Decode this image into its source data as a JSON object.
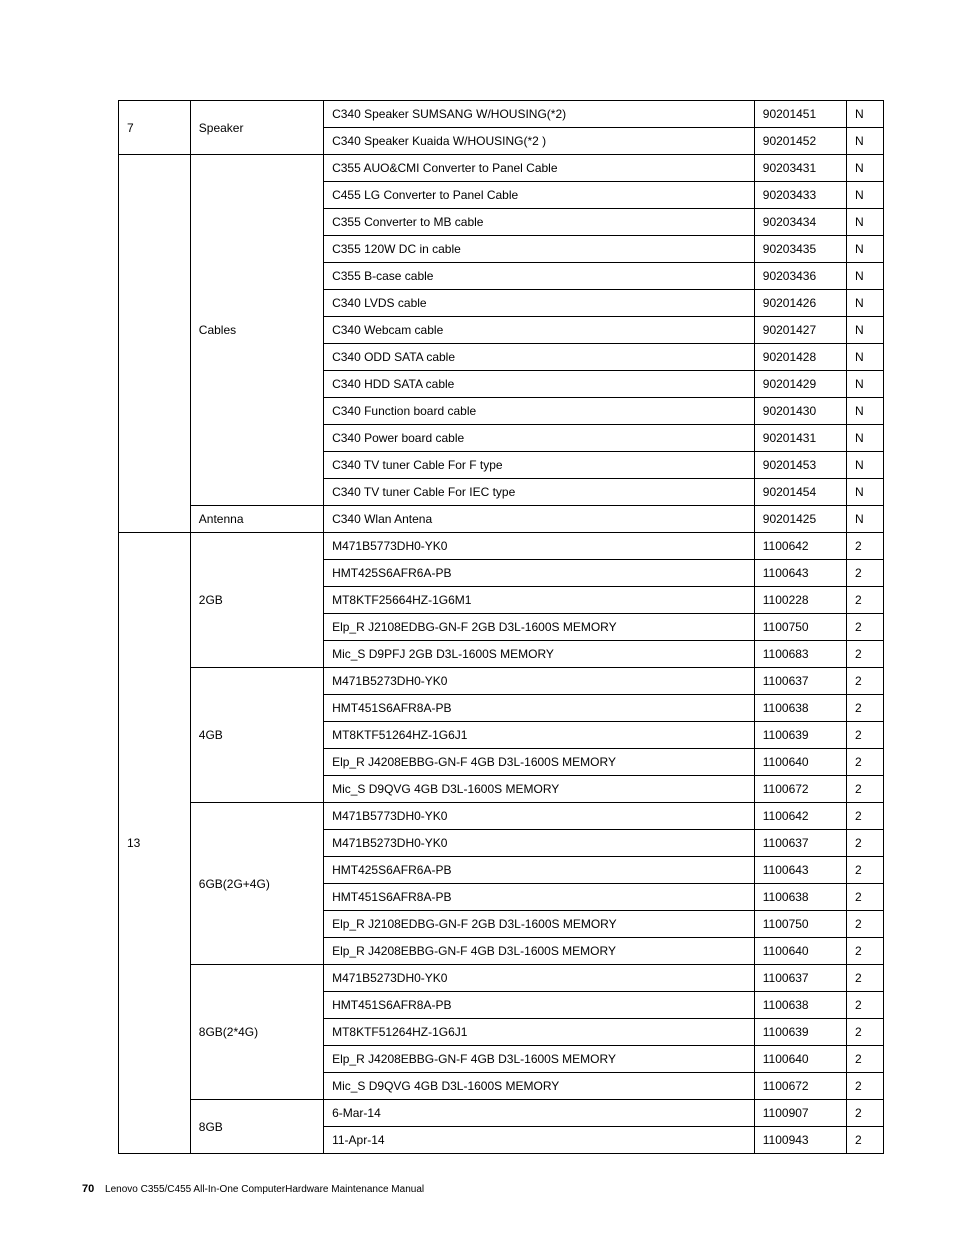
{
  "table": {
    "border_color": "#000000",
    "background": "#ffffff",
    "font_size": 12,
    "columns": [
      "no",
      "category",
      "description",
      "partno",
      "cru"
    ],
    "rows": [
      [
        "7",
        "Speaker",
        "C340 Speaker SUMSANG W/HOUSING(*2)",
        "90201451",
        "N"
      ],
      [
        "",
        "",
        "C340 Speaker Kuaida W/HOUSING(*2 )",
        "90201452",
        "N"
      ],
      [
        "",
        "Cables",
        "C355 AUO&CMI Converter to Panel Cable",
        "90203431",
        "N"
      ],
      [
        "",
        "",
        "C455 LG Converter to Panel Cable",
        "90203433",
        "N"
      ],
      [
        "",
        "",
        "C355 Converter to MB cable",
        "90203434",
        "N"
      ],
      [
        "",
        "",
        "C355 120W DC in cable",
        "90203435",
        "N"
      ],
      [
        "",
        "",
        "C355 B-case cable",
        "90203436",
        "N"
      ],
      [
        "",
        "",
        "C340 LVDS cable",
        "90201426",
        "N"
      ],
      [
        "",
        "",
        "C340 Webcam cable",
        "90201427",
        "N"
      ],
      [
        "",
        "",
        "C340 ODD SATA cable",
        "90201428",
        "N"
      ],
      [
        "",
        "",
        "C340 HDD SATA cable",
        "90201429",
        "N"
      ],
      [
        "",
        "",
        "C340 Function board cable",
        "90201430",
        "N"
      ],
      [
        "",
        "",
        "C340 Power board cable",
        "90201431",
        "N"
      ],
      [
        "",
        "",
        "C340 TV tuner Cable For F type",
        "90201453",
        "N"
      ],
      [
        "",
        "",
        "C340 TV tuner Cable For IEC type",
        "90201454",
        "N"
      ],
      [
        "",
        "Antenna",
        "C340 Wlan Antena",
        "90201425",
        "N"
      ],
      [
        "13",
        "2GB",
        "M471B5773DH0-YK0",
        "1100642",
        "2"
      ],
      [
        "",
        "",
        "HMT425S6AFR6A-PB",
        "1100643",
        "2"
      ],
      [
        "",
        "",
        "MT8KTF25664HZ-1G6M1",
        "1100228",
        "2"
      ],
      [
        "",
        "",
        "Elp_R J2108EDBG-GN-F 2GB D3L-1600S MEMORY",
        "1100750",
        "2"
      ],
      [
        "",
        "",
        "Mic_S D9PFJ 2GB D3L-1600S MEMORY",
        "1100683",
        "2"
      ],
      [
        "",
        "4GB",
        "M471B5273DH0-YK0",
        "1100637",
        "2"
      ],
      [
        "",
        "",
        "HMT451S6AFR8A-PB",
        "1100638",
        "2"
      ],
      [
        "",
        "",
        "MT8KTF51264HZ-1G6J1",
        "1100639",
        "2"
      ],
      [
        "",
        "",
        "Elp_R J4208EBBG-GN-F 4GB D3L-1600S MEMORY",
        "1100640",
        "2"
      ],
      [
        "",
        "",
        "Mic_S D9QVG 4GB D3L-1600S MEMORY",
        "1100672",
        "2"
      ],
      [
        "",
        "6GB(2G+4G)",
        "M471B5773DH0-YK0",
        "1100642",
        "2"
      ],
      [
        "",
        "",
        "M471B5273DH0-YK0",
        "1100637",
        "2"
      ],
      [
        "",
        "",
        "HMT425S6AFR6A-PB",
        "1100643",
        "2"
      ],
      [
        "",
        "",
        "HMT451S6AFR8A-PB",
        "1100638",
        "2"
      ],
      [
        "",
        "",
        "Elp_R J2108EDBG-GN-F 2GB D3L-1600S MEMORY",
        "1100750",
        "2"
      ],
      [
        "",
        "",
        "Elp_R J4208EBBG-GN-F 4GB D3L-1600S MEMORY",
        "1100640",
        "2"
      ],
      [
        "",
        "8GB(2*4G)",
        "M471B5273DH0-YK0",
        "1100637",
        "2"
      ],
      [
        "",
        "",
        "HMT451S6AFR8A-PB",
        "1100638",
        "2"
      ],
      [
        "",
        "",
        "MT8KTF51264HZ-1G6J1",
        "1100639",
        "2"
      ],
      [
        "",
        "",
        "Elp_R J4208EBBG-GN-F 4GB D3L-1600S MEMORY",
        "1100640",
        "2"
      ],
      [
        "",
        "",
        "Mic_S D9QVG 4GB D3L-1600S MEMORY",
        "1100672",
        "2"
      ],
      [
        "",
        "8GB",
        "6-Mar-14",
        "1100907",
        "2"
      ],
      [
        "",
        "",
        "11-Apr-14",
        "1100943",
        "2"
      ]
    ],
    "spans": {
      "0": {
        "col0_rowspan": 2,
        "col1_rowspan": 2
      },
      "2": {
        "col0_rowspan": 14,
        "col1_rowspan": 13
      },
      "15": {
        "col1_rowspan": 1
      },
      "16": {
        "col0_rowspan": 23,
        "col1_rowspan": 5
      },
      "21": {
        "col1_rowspan": 5
      },
      "26": {
        "col1_rowspan": 6
      },
      "32": {
        "col1_rowspan": 5
      },
      "37": {
        "col1_rowspan": 2
      }
    }
  },
  "footer": {
    "page_number": "70",
    "text": "Lenovo C355/C455 All-In-One ComputerHardware Maintenance Manual"
  }
}
